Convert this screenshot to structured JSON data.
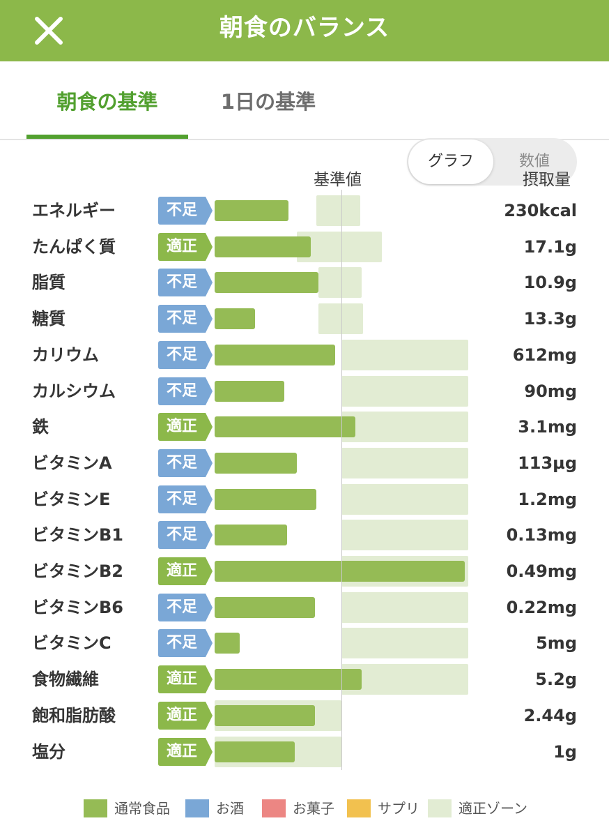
{
  "header": {
    "title": "朝食のバランス",
    "close_icon": "close-icon"
  },
  "tabs": [
    {
      "label": "朝食の基準",
      "active": true
    },
    {
      "label": "1日の基準",
      "active": false
    }
  ],
  "view_toggle": {
    "options": [
      "グラフ",
      "数値"
    ],
    "selected": "グラフ"
  },
  "columns": {
    "standard": "基準値",
    "intake": "摂取量"
  },
  "colors": {
    "header": "#8cb84a",
    "active_tab": "#52a02f",
    "bar": "#95bb55",
    "zone": "#e2ecd3",
    "status_shortage": "#7aa7d6",
    "status_adequate": "#8cb84a"
  },
  "chart_data": {
    "type": "bar",
    "baseline_value": 100,
    "rows": [
      {
        "name": "エネルギー",
        "status": "不足",
        "value": "230kcal",
        "percent_of_standard": 58,
        "zone": [
          80,
          115
        ]
      },
      {
        "name": "たんぱく質",
        "status": "適正",
        "value": "17.1g",
        "percent_of_standard": 76,
        "zone": [
          65,
          132
        ]
      },
      {
        "name": "脂質",
        "status": "不足",
        "value": "10.9g",
        "percent_of_standard": 82,
        "zone": [
          82,
          116
        ]
      },
      {
        "name": "糖質",
        "status": "不足",
        "value": "13.3g",
        "percent_of_standard": 32,
        "zone": [
          82,
          117
        ]
      },
      {
        "name": "カリウム",
        "status": "不足",
        "value": "612mg",
        "percent_of_standard": 95,
        "zone": [
          100,
          200
        ]
      },
      {
        "name": "カルシウム",
        "status": "不足",
        "value": "90mg",
        "percent_of_standard": 55,
        "zone": [
          100,
          200
        ]
      },
      {
        "name": "鉄",
        "status": "適正",
        "value": "3.1mg",
        "percent_of_standard": 111,
        "zone": [
          100,
          200
        ]
      },
      {
        "name": "ビタミンA",
        "status": "不足",
        "value": "113µg",
        "percent_of_standard": 65,
        "zone": [
          100,
          200
        ]
      },
      {
        "name": "ビタミンE",
        "status": "不足",
        "value": "1.2mg",
        "percent_of_standard": 80,
        "zone": [
          100,
          200
        ]
      },
      {
        "name": "ビタミンB1",
        "status": "不足",
        "value": "0.13mg",
        "percent_of_standard": 57,
        "zone": [
          100,
          200
        ]
      },
      {
        "name": "ビタミンB2",
        "status": "適正",
        "value": "0.49mg",
        "percent_of_standard": 197,
        "zone": [
          100,
          200
        ]
      },
      {
        "name": "ビタミンB6",
        "status": "不足",
        "value": "0.22mg",
        "percent_of_standard": 79,
        "zone": [
          100,
          200
        ]
      },
      {
        "name": "ビタミンC",
        "status": "不足",
        "value": "5mg",
        "percent_of_standard": 20,
        "zone": [
          100,
          200
        ]
      },
      {
        "name": "食物繊維",
        "status": "適正",
        "value": "5.2g",
        "percent_of_standard": 116,
        "zone": [
          100,
          200
        ]
      },
      {
        "name": "飽和脂肪酸",
        "status": "適正",
        "value": "2.44g",
        "percent_of_standard": 79,
        "zone": [
          0,
          100
        ]
      },
      {
        "name": "塩分",
        "status": "適正",
        "value": "1g",
        "percent_of_standard": 63,
        "zone": [
          0,
          100
        ]
      }
    ]
  },
  "legend": [
    {
      "label": "通常食品",
      "color": "#95bb55"
    },
    {
      "label": "お酒",
      "color": "#7aa7d6"
    },
    {
      "label": "お菓子",
      "color": "#ec8683"
    },
    {
      "label": "サプリ",
      "color": "#f2c14f"
    },
    {
      "label": "適正ゾーン",
      "color": "#e2ecd3"
    }
  ]
}
